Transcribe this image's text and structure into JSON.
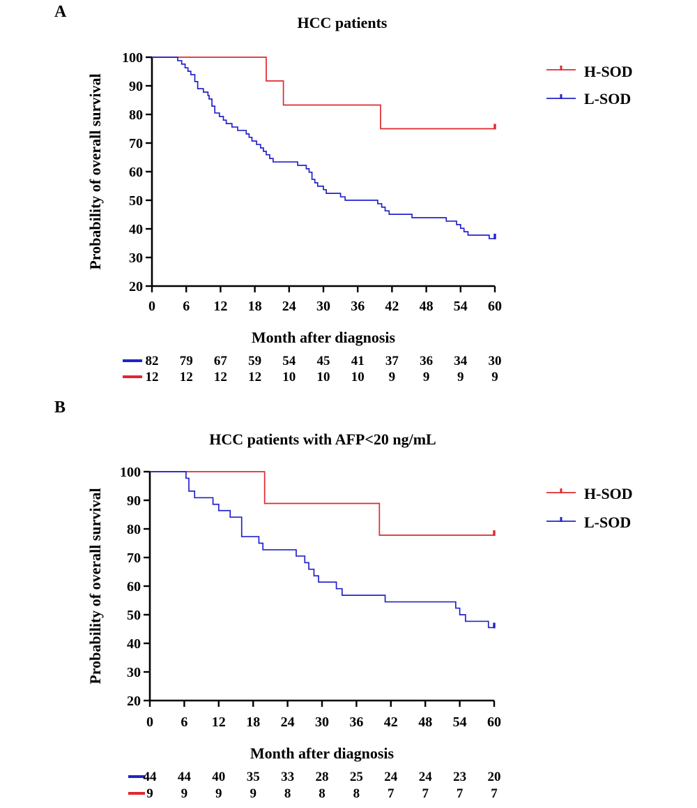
{
  "chart_data": [
    {
      "panel_label": "A",
      "type": "line",
      "subtype": "kaplan-meier",
      "title": "HCC patients",
      "xlabel": "Month after diagnosis",
      "ylabel": "Probability of overall survival",
      "xlim": [
        0,
        60
      ],
      "ylim": [
        20,
        100
      ],
      "x_ticks": [
        0,
        6,
        12,
        18,
        24,
        30,
        36,
        42,
        48,
        54,
        60
      ],
      "y_ticks": [
        20,
        30,
        40,
        50,
        60,
        70,
        80,
        90,
        100
      ],
      "grid": false,
      "legend_position": "top-right",
      "series": [
        {
          "name": "H-SOD",
          "color": "#e0282e",
          "steps": [
            [
              0,
              100
            ],
            [
              20,
              91.7
            ],
            [
              23,
              83.3
            ],
            [
              40,
              75
            ],
            [
              60,
              75
            ]
          ],
          "censor_marks": [
            60
          ]
        },
        {
          "name": "L-SOD",
          "color": "#2222cc",
          "steps": [
            [
              0,
              100
            ],
            [
              4.5,
              98.8
            ],
            [
              5.2,
              97.6
            ],
            [
              5.8,
              96.3
            ],
            [
              6.3,
              95.1
            ],
            [
              6.8,
              93.9
            ],
            [
              7.5,
              91.5
            ],
            [
              8,
              89
            ],
            [
              9,
              87.8
            ],
            [
              9.8,
              86.6
            ],
            [
              10,
              85.4
            ],
            [
              10.5,
              82.9
            ],
            [
              11,
              80.5
            ],
            [
              11.8,
              79.3
            ],
            [
              12.5,
              78
            ],
            [
              13,
              76.8
            ],
            [
              14,
              75.6
            ],
            [
              15,
              74.4
            ],
            [
              16.5,
              73.2
            ],
            [
              17,
              72
            ],
            [
              17.5,
              70.7
            ],
            [
              18.3,
              69.5
            ],
            [
              19,
              68.3
            ],
            [
              19.5,
              67.1
            ],
            [
              20,
              65.9
            ],
            [
              20.6,
              64.6
            ],
            [
              21.2,
              63.4
            ],
            [
              25.5,
              62.2
            ],
            [
              27,
              61
            ],
            [
              27.5,
              59.8
            ],
            [
              28,
              57.3
            ],
            [
              28.5,
              56.1
            ],
            [
              29,
              54.9
            ],
            [
              30,
              53.7
            ],
            [
              30.5,
              52.4
            ],
            [
              33,
              51.2
            ],
            [
              33.8,
              50
            ],
            [
              39.5,
              48.8
            ],
            [
              40.2,
              47.6
            ],
            [
              40.8,
              46.3
            ],
            [
              41.5,
              45.1
            ],
            [
              45.5,
              43.9
            ],
            [
              51.5,
              42.7
            ],
            [
              53.3,
              41.5
            ],
            [
              54,
              40.2
            ],
            [
              54.6,
              39
            ],
            [
              55.3,
              37.8
            ],
            [
              59,
              36.6
            ],
            [
              60,
              36.6
            ]
          ],
          "censor_marks": [
            60
          ]
        }
      ],
      "risk_table": {
        "times": [
          0,
          6,
          12,
          18,
          24,
          30,
          36,
          42,
          48,
          54,
          60
        ],
        "rows": [
          {
            "series": "L-SOD",
            "color": "#2222cc",
            "values": [
              "82",
              "79",
              "67",
              "59",
              "54",
              "45",
              "41",
              "37",
              "36",
              "34",
              "30"
            ]
          },
          {
            "series": "H-SOD",
            "color": "#e0282e",
            "values": [
              "12",
              "12",
              "12",
              "12",
              "10",
              "10",
              "10",
              "9",
              "9",
              "9",
              "9"
            ]
          }
        ]
      }
    },
    {
      "panel_label": "B",
      "type": "line",
      "subtype": "kaplan-meier",
      "title": "HCC patients with AFP<20 ng/mL",
      "xlabel": "Month after diagnosis",
      "ylabel": "Probability of overall survival",
      "xlim": [
        0,
        60
      ],
      "ylim": [
        20,
        100
      ],
      "x_ticks": [
        0,
        6,
        12,
        18,
        24,
        30,
        36,
        42,
        48,
        54,
        60
      ],
      "y_ticks": [
        20,
        30,
        40,
        50,
        60,
        70,
        80,
        90,
        100
      ],
      "grid": false,
      "legend_position": "top-right",
      "series": [
        {
          "name": "H-SOD",
          "color": "#e0282e",
          "steps": [
            [
              0,
              100
            ],
            [
              20,
              88.9
            ],
            [
              40,
              77.8
            ],
            [
              60,
              77.8
            ]
          ],
          "censor_marks": [
            60
          ]
        },
        {
          "name": "L-SOD",
          "color": "#2222cc",
          "steps": [
            [
              0,
              100
            ],
            [
              6.3,
              97.7
            ],
            [
              6.8,
              93.2
            ],
            [
              7.8,
              90.9
            ],
            [
              11,
              88.6
            ],
            [
              12,
              86.4
            ],
            [
              14,
              84.1
            ],
            [
              16,
              77.3
            ],
            [
              19,
              75
            ],
            [
              19.7,
              72.7
            ],
            [
              25.5,
              70.5
            ],
            [
              27,
              68.2
            ],
            [
              27.7,
              65.9
            ],
            [
              28.6,
              63.6
            ],
            [
              29.4,
              61.4
            ],
            [
              32.5,
              59.1
            ],
            [
              33.5,
              56.8
            ],
            [
              41,
              54.5
            ],
            [
              53.3,
              52.3
            ],
            [
              54,
              50
            ],
            [
              55,
              47.7
            ],
            [
              59,
              45.5
            ],
            [
              60,
              45.5
            ]
          ],
          "censor_marks": [
            60
          ]
        }
      ],
      "risk_table": {
        "times": [
          0,
          6,
          12,
          18,
          24,
          30,
          36,
          42,
          48,
          54,
          60
        ],
        "rows": [
          {
            "series": "L-SOD",
            "color": "#2222cc",
            "values": [
              "44",
              "44",
              "40",
              "35",
              "33",
              "28",
              "25",
              "24",
              "24",
              "23",
              "20"
            ]
          },
          {
            "series": "H-SOD",
            "color": "#e0282e",
            "values": [
              "9",
              "9",
              "9",
              "9",
              "8",
              "8",
              "8",
              "7",
              "7",
              "7",
              "7"
            ]
          }
        ]
      }
    }
  ]
}
